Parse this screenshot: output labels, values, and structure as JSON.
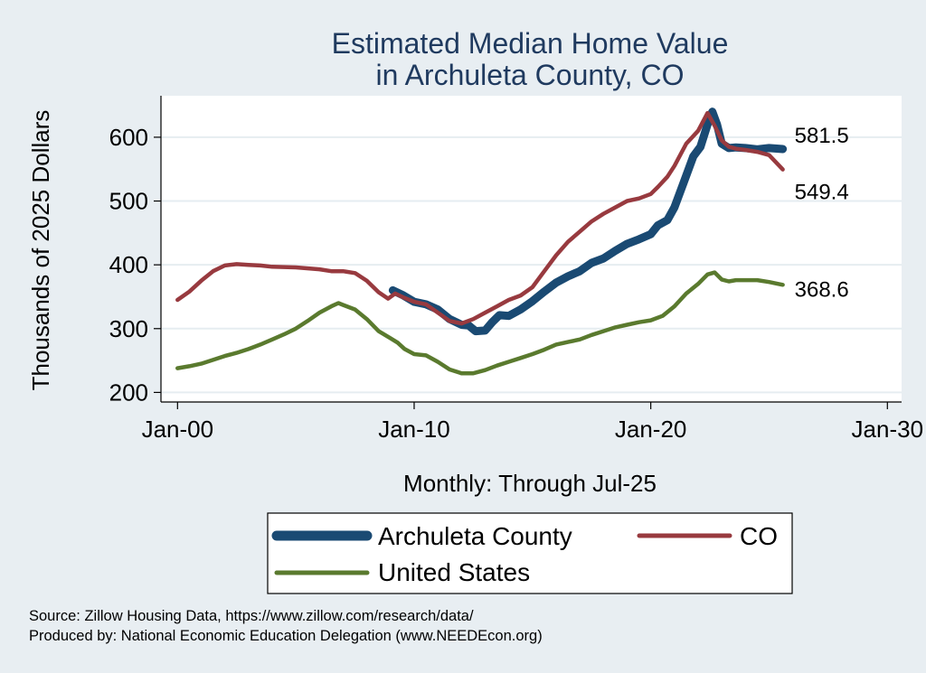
{
  "chart_data": {
    "type": "line",
    "title": [
      "Estimated Median Home Value",
      "in Archuleta County, CO"
    ],
    "ylabel": "Thousands of 2025 Dollars",
    "xlabel": "Monthly: Through Jul-25",
    "ylim": [
      185,
      665
    ],
    "xlim": [
      1999.3,
      2030.6
    ],
    "yticks": [
      200,
      300,
      400,
      500,
      600
    ],
    "xticks": [
      {
        "value": 2000,
        "label": "Jan-00"
      },
      {
        "value": 2010,
        "label": "Jan-10"
      },
      {
        "value": 2020,
        "label": "Jan-20"
      },
      {
        "value": 2030,
        "label": "Jan-30"
      }
    ],
    "grid": true,
    "legend_position": "bottom",
    "series": [
      {
        "name": "Archuleta County",
        "color": "#1a4a73",
        "width": "thick",
        "x": [
          2009.1,
          2009.5,
          2010.0,
          2010.5,
          2011.0,
          2011.5,
          2012.0,
          2012.3,
          2012.6,
          2013.0,
          2013.3,
          2013.6,
          2014.0,
          2014.5,
          2015.0,
          2015.5,
          2016.0,
          2016.5,
          2017.0,
          2017.5,
          2018.0,
          2018.5,
          2019.0,
          2019.5,
          2020.0,
          2020.3,
          2020.7,
          2021.0,
          2021.4,
          2021.8,
          2022.1,
          2022.4,
          2022.6,
          2022.8,
          2023.0,
          2023.3,
          2023.6,
          2024.0,
          2024.5,
          2025.0,
          2025.58
        ],
        "values": [
          360,
          353,
          342,
          338,
          330,
          315,
          306,
          305,
          296,
          297,
          310,
          321,
          320,
          330,
          343,
          358,
          372,
          382,
          390,
          403,
          410,
          422,
          433,
          440,
          448,
          462,
          470,
          490,
          530,
          570,
          585,
          620,
          640,
          620,
          590,
          583,
          584,
          583,
          581,
          583,
          581.5
        ]
      },
      {
        "name": "CO",
        "color": "#983a3f",
        "width": "medium",
        "x": [
          2000.0,
          2000.5,
          2001.0,
          2001.5,
          2002.0,
          2002.5,
          2003.0,
          2003.5,
          2004.0,
          2005.0,
          2006.0,
          2006.5,
          2007.0,
          2007.5,
          2008.0,
          2008.5,
          2008.9,
          2009.2,
          2009.6,
          2010.0,
          2010.5,
          2011.0,
          2011.5,
          2012.0,
          2012.5,
          2013.0,
          2013.5,
          2014.0,
          2014.5,
          2015.0,
          2015.5,
          2016.0,
          2016.5,
          2017.0,
          2017.5,
          2018.0,
          2018.5,
          2019.0,
          2019.5,
          2020.0,
          2020.3,
          2020.7,
          2021.0,
          2021.5,
          2022.0,
          2022.4,
          2022.7,
          2023.0,
          2023.3,
          2023.6,
          2024.0,
          2024.5,
          2025.0,
          2025.58
        ],
        "values": [
          345,
          358,
          375,
          390,
          399,
          401,
          400,
          399,
          397,
          396,
          393,
          390,
          390,
          387,
          375,
          357,
          347,
          355,
          348,
          342,
          338,
          325,
          312,
          308,
          315,
          325,
          335,
          345,
          352,
          365,
          390,
          415,
          436,
          452,
          468,
          480,
          490,
          500,
          504,
          511,
          522,
          538,
          555,
          590,
          610,
          638,
          618,
          595,
          585,
          582,
          580,
          577,
          572,
          549.4
        ]
      },
      {
        "name": "United States",
        "color": "#5a7a2e",
        "width": "medium",
        "x": [
          2000.0,
          2000.5,
          2001.0,
          2001.5,
          2002.0,
          2002.5,
          2003.0,
          2003.5,
          2004.0,
          2004.5,
          2005.0,
          2005.5,
          2006.0,
          2006.5,
          2006.8,
          2007.0,
          2007.5,
          2008.0,
          2008.5,
          2009.0,
          2009.3,
          2009.6,
          2010.0,
          2010.5,
          2011.0,
          2011.5,
          2012.0,
          2012.5,
          2013.0,
          2013.5,
          2014.0,
          2014.5,
          2015.0,
          2015.5,
          2016.0,
          2016.5,
          2017.0,
          2017.5,
          2018.0,
          2018.5,
          2019.0,
          2019.5,
          2020.0,
          2020.5,
          2021.0,
          2021.5,
          2022.0,
          2022.4,
          2022.7,
          2023.0,
          2023.3,
          2023.6,
          2024.0,
          2024.5,
          2025.0,
          2025.58
        ],
        "values": [
          238,
          241,
          245,
          251,
          257,
          262,
          268,
          275,
          283,
          291,
          300,
          312,
          325,
          335,
          340,
          337,
          330,
          315,
          296,
          285,
          278,
          268,
          260,
          258,
          248,
          236,
          230,
          230,
          235,
          242,
          248,
          254,
          260,
          267,
          275,
          279,
          283,
          290,
          296,
          302,
          306,
          310,
          313,
          320,
          335,
          355,
          370,
          385,
          388,
          377,
          374,
          376,
          376,
          376,
          373,
          368.6
        ]
      }
    ],
    "end_labels": [
      {
        "series": "Archuleta County",
        "text": "581.5"
      },
      {
        "series": "CO",
        "text": "549.4"
      },
      {
        "series": "United States",
        "text": "368.6"
      }
    ]
  },
  "source_lines": [
    "Source: Zillow Housing Data, https://www.zillow.com/research/data/",
    "Produced by: National Economic Education Delegation (www.NEEDEcon.org)"
  ],
  "colors": {
    "background": "#e8eef2",
    "plot_background": "#ffffff",
    "title": "#1f3a5f"
  }
}
